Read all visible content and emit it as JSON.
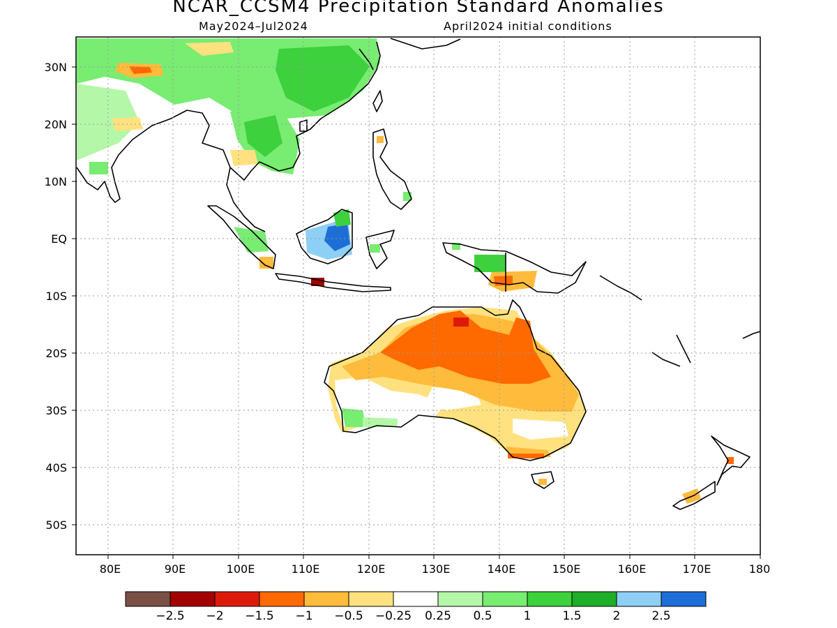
{
  "title": "NCAR_CCSM4 Precipitation Standard Anomalies",
  "subtitle_left": "May2024–Jul2024",
  "subtitle_right": "April2024 initial conditions",
  "axes": {
    "lon_ticks": [
      "80E",
      "90E",
      "100E",
      "110E",
      "120E",
      "130E",
      "140E",
      "150E",
      "160E",
      "170E",
      "180"
    ],
    "lat_ticks": [
      "30N",
      "20N",
      "10N",
      "EQ",
      "10S",
      "20S",
      "30S",
      "40S",
      "50S"
    ],
    "lon_range": [
      75,
      180
    ],
    "lat_range": [
      -55,
      35
    ],
    "grid": true
  },
  "colorbar": {
    "colors": [
      "#7a4f44",
      "#a30000",
      "#dd1a0a",
      "#ff6a00",
      "#ffbb3c",
      "#ffe27f",
      "#ffffff",
      "#b4f7a8",
      "#79ec72",
      "#3cd13d",
      "#1eae28",
      "#8ecff6",
      "#1e6ed7"
    ],
    "labels": [
      "−2.5",
      "−2",
      "−1.5",
      "−1",
      "−0.5",
      "−0.25",
      "0.25",
      "0.5",
      "1",
      "1.5",
      "2",
      "2.5"
    ]
  },
  "colors": {
    "land_outline": "#000000",
    "grid": "#9a9a9a",
    "frame": "#000000"
  }
}
